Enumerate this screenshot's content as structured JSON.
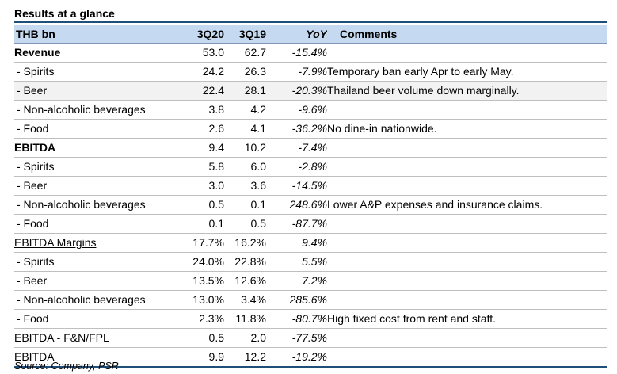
{
  "title": "Results at a glance",
  "header": {
    "col0": "THB bn",
    "col1": "3Q20",
    "col2": "3Q19",
    "col3": "YoY",
    "col4": "Comments"
  },
  "rows": [
    {
      "label": "Revenue",
      "v1": "53.0",
      "v2": "62.7",
      "yoy": "-15.4%",
      "comment": "",
      "style": "bold",
      "shaded": false
    },
    {
      "label": " - Spirits",
      "v1": "24.2",
      "v2": "26.3",
      "yoy": "-7.9%",
      "comment": "Temporary ban early Apr to early May.",
      "style": "sub",
      "shaded": false
    },
    {
      "label": " - Beer",
      "v1": "22.4",
      "v2": "28.1",
      "yoy": "-20.3%",
      "comment": "Thailand beer volume down marginally.",
      "style": "sub",
      "shaded": true
    },
    {
      "label": " - Non-alcoholic beverages",
      "v1": "3.8",
      "v2": "4.2",
      "yoy": "-9.6%",
      "comment": "",
      "style": "sub",
      "shaded": false
    },
    {
      "label": " - Food",
      "v1": "2.6",
      "v2": "4.1",
      "yoy": "-36.2%",
      "comment": "No dine-in nationwide.",
      "style": "sub",
      "shaded": false
    },
    {
      "label": "EBITDA",
      "v1": "9.4",
      "v2": "10.2",
      "yoy": "-7.4%",
      "comment": "",
      "style": "bold",
      "shaded": false
    },
    {
      "label": " - Spirits",
      "v1": "5.8",
      "v2": "6.0",
      "yoy": "-2.8%",
      "comment": "",
      "style": "sub",
      "shaded": false
    },
    {
      "label": " - Beer",
      "v1": "3.0",
      "v2": "3.6",
      "yoy": "-14.5%",
      "comment": "",
      "style": "sub",
      "shaded": false
    },
    {
      "label": " - Non-alcoholic beverages",
      "v1": "0.5",
      "v2": "0.1",
      "yoy": "248.6%",
      "comment": "Lower A&P expenses and insurance claims.",
      "style": "sub",
      "shaded": false
    },
    {
      "label": " - Food",
      "v1": "0.1",
      "v2": "0.5",
      "yoy": "-87.7%",
      "comment": "",
      "style": "sub",
      "shaded": false
    },
    {
      "label": "EBITDA Margins",
      "v1": "17.7%",
      "v2": "16.2%",
      "yoy": "9.4%",
      "comment": "",
      "style": "underline",
      "shaded": false
    },
    {
      "label": " - Spirits",
      "v1": "24.0%",
      "v2": "22.8%",
      "yoy": "5.5%",
      "comment": "",
      "style": "sub",
      "shaded": false
    },
    {
      "label": " - Beer",
      "v1": "13.5%",
      "v2": "12.6%",
      "yoy": "7.2%",
      "comment": "",
      "style": "sub",
      "shaded": false
    },
    {
      "label": " - Non-alcoholic beverages",
      "v1": "13.0%",
      "v2": "3.4%",
      "yoy": "285.6%",
      "comment": "",
      "style": "sub",
      "shaded": false
    },
    {
      "label": " - Food",
      "v1": "2.3%",
      "v2": "11.8%",
      "yoy": "-80.7%",
      "comment": "High fixed cost from rent and staff.",
      "style": "sub",
      "shaded": false
    },
    {
      "label": "EBITDA - F&N/FPL",
      "v1": "0.5",
      "v2": "2.0",
      "yoy": "-77.5%",
      "comment": "",
      "style": "plain",
      "shaded": false
    },
    {
      "label": "EBITDA",
      "v1": "9.9",
      "v2": "12.2",
      "yoy": "-19.2%",
      "comment": "",
      "style": "plain",
      "shaded": false
    }
  ],
  "source": "Source: Company, PSR",
  "colors": {
    "header_bg": "#c5d9f1",
    "rule": "#1f4e79",
    "shade": "#f2f2f2"
  }
}
